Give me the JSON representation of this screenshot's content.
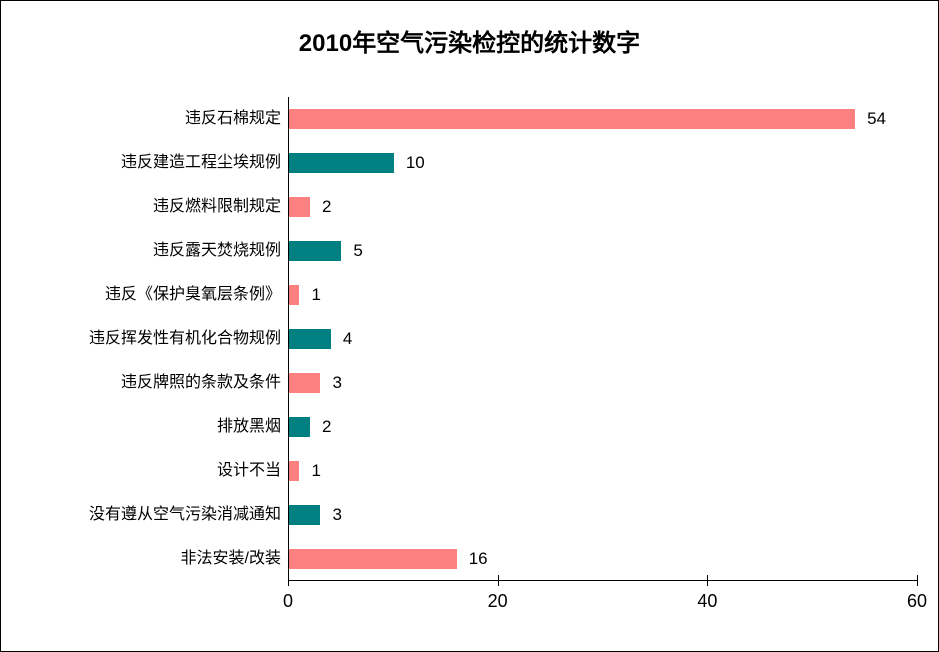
{
  "title": "2010年空气污染检控的统计数字",
  "colors": {
    "bar_pink": "#FB8080",
    "bar_teal": "#008080",
    "axis": "#000000",
    "background": "#FFFFFF"
  },
  "chart_data": {
    "type": "bar",
    "orientation": "horizontal",
    "title": "2010年空气污染检控的统计数字",
    "categories": [
      "违反石棉规定",
      "违反建造工程尘埃规例",
      "违反燃料限制规定",
      "违反露天焚烧规例",
      "违反《保护臭氧层条例》",
      "违反挥发性有机化合物规例",
      "违反牌照的条款及条件",
      "排放黑烟",
      "设计不当",
      "没有遵从空气污染消减通知",
      "非法安装/改装"
    ],
    "values": [
      54,
      10,
      2,
      5,
      1,
      4,
      3,
      2,
      1,
      3,
      16
    ],
    "value_labels": [
      "54",
      "10",
      "2",
      "5",
      "1",
      "4",
      "3",
      "2",
      "1",
      "3",
      "16"
    ],
    "bar_colors": [
      "#FB8080",
      "#008080",
      "#FB8080",
      "#008080",
      "#FB8080",
      "#008080",
      "#FB8080",
      "#008080",
      "#FB8080",
      "#008080",
      "#FB8080"
    ],
    "x_ticks": [
      0,
      20,
      40,
      60
    ],
    "x_tick_labels": [
      "0",
      "20",
      "40",
      "60"
    ],
    "xlim": [
      0,
      60
    ],
    "xlabel": "",
    "ylabel": "",
    "grid": false,
    "legend": false,
    "data_labels": true
  }
}
